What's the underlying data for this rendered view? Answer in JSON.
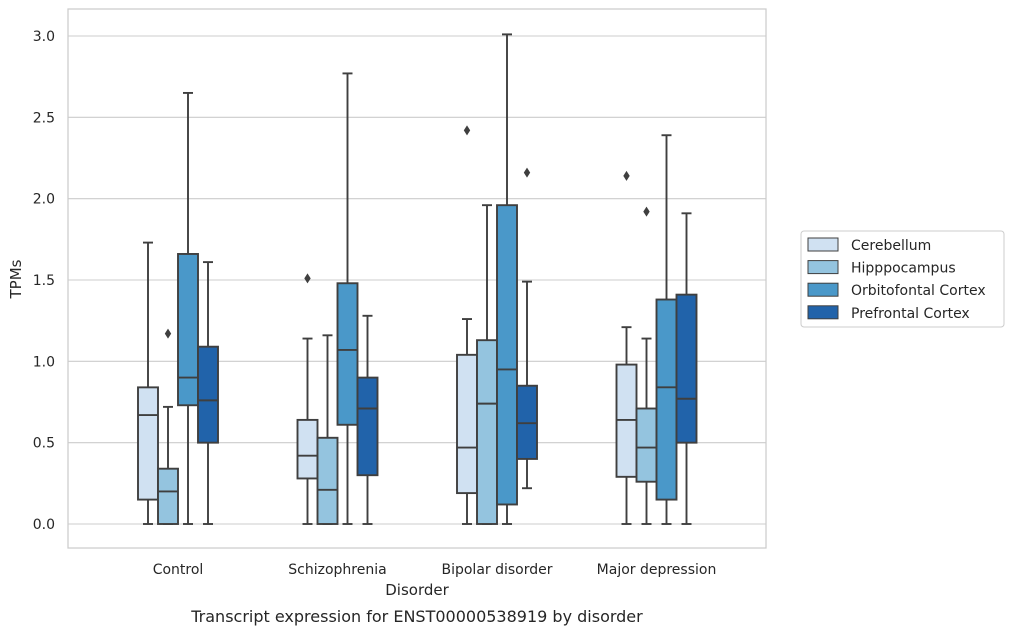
{
  "chart_data": {
    "type": "boxplot",
    "title": "",
    "caption": "Transcript expression for ENST00000538919 by disorder",
    "xlabel": "Disorder",
    "ylabel": "TPMs",
    "ylim": [
      -0.15,
      3.17
    ],
    "yticks": [
      0.0,
      0.5,
      1.0,
      1.5,
      2.0,
      2.5,
      3.0
    ],
    "ytick_labels": [
      "0.0",
      "0.5",
      "1.0",
      "1.5",
      "2.0",
      "2.5",
      "3.0"
    ],
    "grid": "horizontal",
    "legend_position": "right",
    "categories": [
      "Control",
      "Schizophrenia",
      "Bipolar disorder",
      "Major depression"
    ],
    "series": [
      {
        "name": "Cerebellum",
        "color": "#d0e1f2",
        "boxes": [
          {
            "whislo": 0.0,
            "q1": 0.15,
            "med": 0.67,
            "q3": 0.84,
            "whishi": 1.73,
            "fliers": []
          },
          {
            "whislo": 0.0,
            "q1": 0.28,
            "med": 0.42,
            "q3": 0.64,
            "whishi": 1.14,
            "fliers": [
              1.51
            ]
          },
          {
            "whislo": 0.0,
            "q1": 0.19,
            "med": 0.47,
            "q3": 1.04,
            "whishi": 1.26,
            "fliers": [
              2.42
            ]
          },
          {
            "whislo": 0.0,
            "q1": 0.29,
            "med": 0.64,
            "q3": 0.98,
            "whishi": 1.21,
            "fliers": [
              2.14
            ]
          }
        ]
      },
      {
        "name": "Hipppocampus",
        "color": "#94c4df",
        "boxes": [
          {
            "whislo": 0.0,
            "q1": 0.0,
            "med": 0.2,
            "q3": 0.34,
            "whishi": 0.72,
            "fliers": [
              1.17
            ]
          },
          {
            "whislo": 0.0,
            "q1": 0.0,
            "med": 0.21,
            "q3": 0.53,
            "whishi": 1.16,
            "fliers": []
          },
          {
            "whislo": 0.0,
            "q1": 0.0,
            "med": 0.74,
            "q3": 1.13,
            "whishi": 1.96,
            "fliers": []
          },
          {
            "whislo": 0.0,
            "q1": 0.26,
            "med": 0.47,
            "q3": 0.71,
            "whishi": 1.14,
            "fliers": [
              1.92
            ]
          }
        ]
      },
      {
        "name": "Orbitofontal Cortex",
        "color": "#4a98c9",
        "boxes": [
          {
            "whislo": 0.0,
            "q1": 0.73,
            "med": 0.9,
            "q3": 1.66,
            "whishi": 2.65,
            "fliers": []
          },
          {
            "whislo": 0.0,
            "q1": 0.61,
            "med": 1.07,
            "q3": 1.48,
            "whishi": 2.77,
            "fliers": []
          },
          {
            "whislo": 0.0,
            "q1": 0.12,
            "med": 0.95,
            "q3": 1.96,
            "whishi": 3.01,
            "fliers": []
          },
          {
            "whislo": 0.0,
            "q1": 0.15,
            "med": 0.84,
            "q3": 1.38,
            "whishi": 2.39,
            "fliers": []
          }
        ]
      },
      {
        "name": "Prefrontal Cortex",
        "color": "#2163aa",
        "boxes": [
          {
            "whislo": 0.0,
            "q1": 0.5,
            "med": 0.76,
            "q3": 1.09,
            "whishi": 1.61,
            "fliers": []
          },
          {
            "whislo": 0.0,
            "q1": 0.3,
            "med": 0.71,
            "q3": 0.9,
            "whishi": 1.28,
            "fliers": []
          },
          {
            "whislo": 0.22,
            "q1": 0.4,
            "med": 0.62,
            "q3": 0.85,
            "whishi": 1.49,
            "fliers": [
              2.16
            ]
          },
          {
            "whislo": 0.0,
            "q1": 0.5,
            "med": 0.77,
            "q3": 1.41,
            "whishi": 1.91,
            "fliers": []
          }
        ]
      }
    ]
  }
}
